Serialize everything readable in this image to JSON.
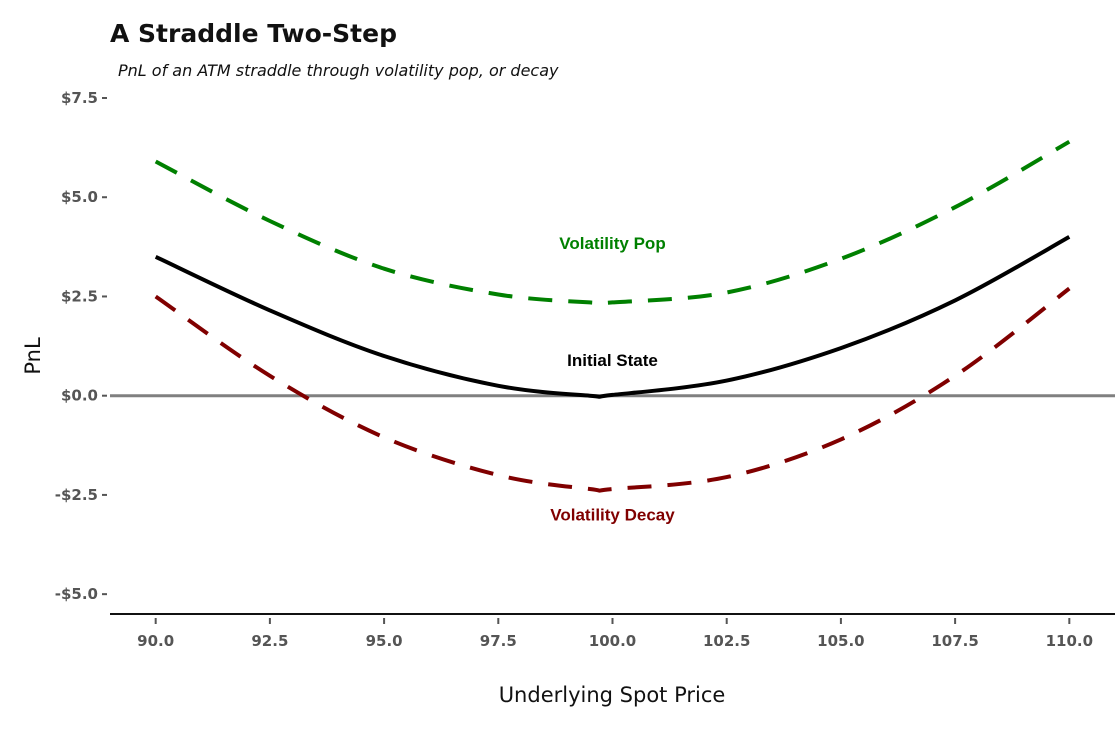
{
  "chart_data": {
    "type": "line",
    "title": "A Straddle Two-Step",
    "subtitle": "PnL of an ATM straddle through volatility pop, or decay",
    "xlabel": "Underlying Spot Price",
    "ylabel": "PnL",
    "xlim": [
      89.0,
      111.0
    ],
    "ylim": [
      -5.5,
      7.5
    ],
    "x_ticks": [
      90.0,
      92.5,
      95.0,
      97.5,
      100.0,
      102.5,
      105.0,
      107.5,
      110.0
    ],
    "x_tick_labels": [
      "90.0",
      "92.5",
      "95.0",
      "97.5",
      "100.0",
      "102.5",
      "105.0",
      "107.5",
      "110.0"
    ],
    "y_ticks": [
      7.5,
      5.0,
      2.5,
      0.0,
      -2.5,
      -5.0
    ],
    "y_tick_labels": [
      "$7.5",
      "$5.0",
      "$2.5",
      "$0.0",
      "-$2.5",
      "-$5.0"
    ],
    "reference_line": {
      "y": 0.0,
      "color": "#808080"
    },
    "x": [
      90.0,
      92.5,
      95.0,
      97.5,
      99.5,
      100.0,
      102.5,
      105.0,
      107.5,
      110.0
    ],
    "series": [
      {
        "name": "Volatility Pop",
        "style": "dashed",
        "color": "#008000",
        "values": [
          5.9,
          4.4,
          3.2,
          2.55,
          2.35,
          2.35,
          2.6,
          3.45,
          4.75,
          6.4
        ]
      },
      {
        "name": "Initial State",
        "style": "solid",
        "color": "#000000",
        "values": [
          3.5,
          2.15,
          1.0,
          0.25,
          0.0,
          0.02,
          0.38,
          1.2,
          2.4,
          4.0
        ]
      },
      {
        "name": "Volatility Decay",
        "style": "dashed",
        "color": "#800000",
        "values": [
          2.5,
          0.5,
          -1.05,
          -2.0,
          -2.35,
          -2.35,
          -2.05,
          -1.1,
          0.5,
          2.7
        ]
      }
    ],
    "series_label_anchor_x": [
      100.0,
      100.0,
      100.0
    ],
    "series_label_anchor_y": [
      3.7,
      0.75,
      -3.15
    ],
    "grid": false,
    "legend": "none (direct labels on curves)"
  }
}
